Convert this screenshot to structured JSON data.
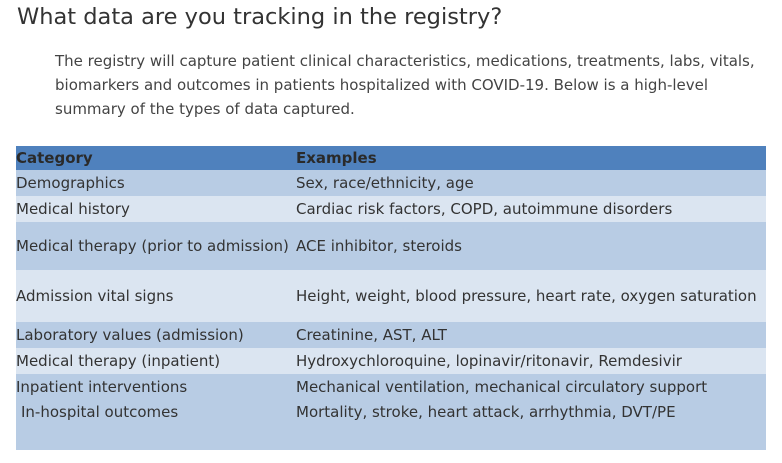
{
  "heading": "What data are you tracking in the registry?",
  "intro": "The registry will capture patient clinical characteristics, medications, treatments, labs, vitals, biomarkers and outcomes in patients hospitalized with COVID-19. Below is a high-level summary of the types of data captured.",
  "table": {
    "headers": [
      "Category",
      "Examples"
    ],
    "rows": [
      {
        "category": "Demographics",
        "examples": "Sex, race/ethnicity, age"
      },
      {
        "category": "Medical history",
        "examples": "Cardiac risk factors, COPD, autoimmune disorders"
      },
      {
        "category": "Medical therapy (prior to admission)",
        "examples": "ACE inhibitor, steroids"
      },
      {
        "category": "Admission vital signs",
        "examples": "Height, weight, blood pressure, heart rate, oxygen saturation"
      },
      {
        "category": "Laboratory values (admission)",
        "examples": "Creatinine, AST, ALT"
      },
      {
        "category": "Medical therapy (inpatient)",
        "examples": "Hydroxychloroquine, lopinavir/ritonavir, Remdesivir"
      },
      {
        "category": "Inpatient interventions",
        "examples": "Mechanical ventilation, mechanical circulatory support"
      },
      {
        "category": "In-hospital outcomes",
        "examples": "Mortality, stroke, heart attack, arrhythmia, DVT/PE"
      }
    ]
  },
  "colors": {
    "header_bg": "#4f81bd",
    "row_dark": "#b8cce4",
    "row_light": "#dbe5f1"
  }
}
